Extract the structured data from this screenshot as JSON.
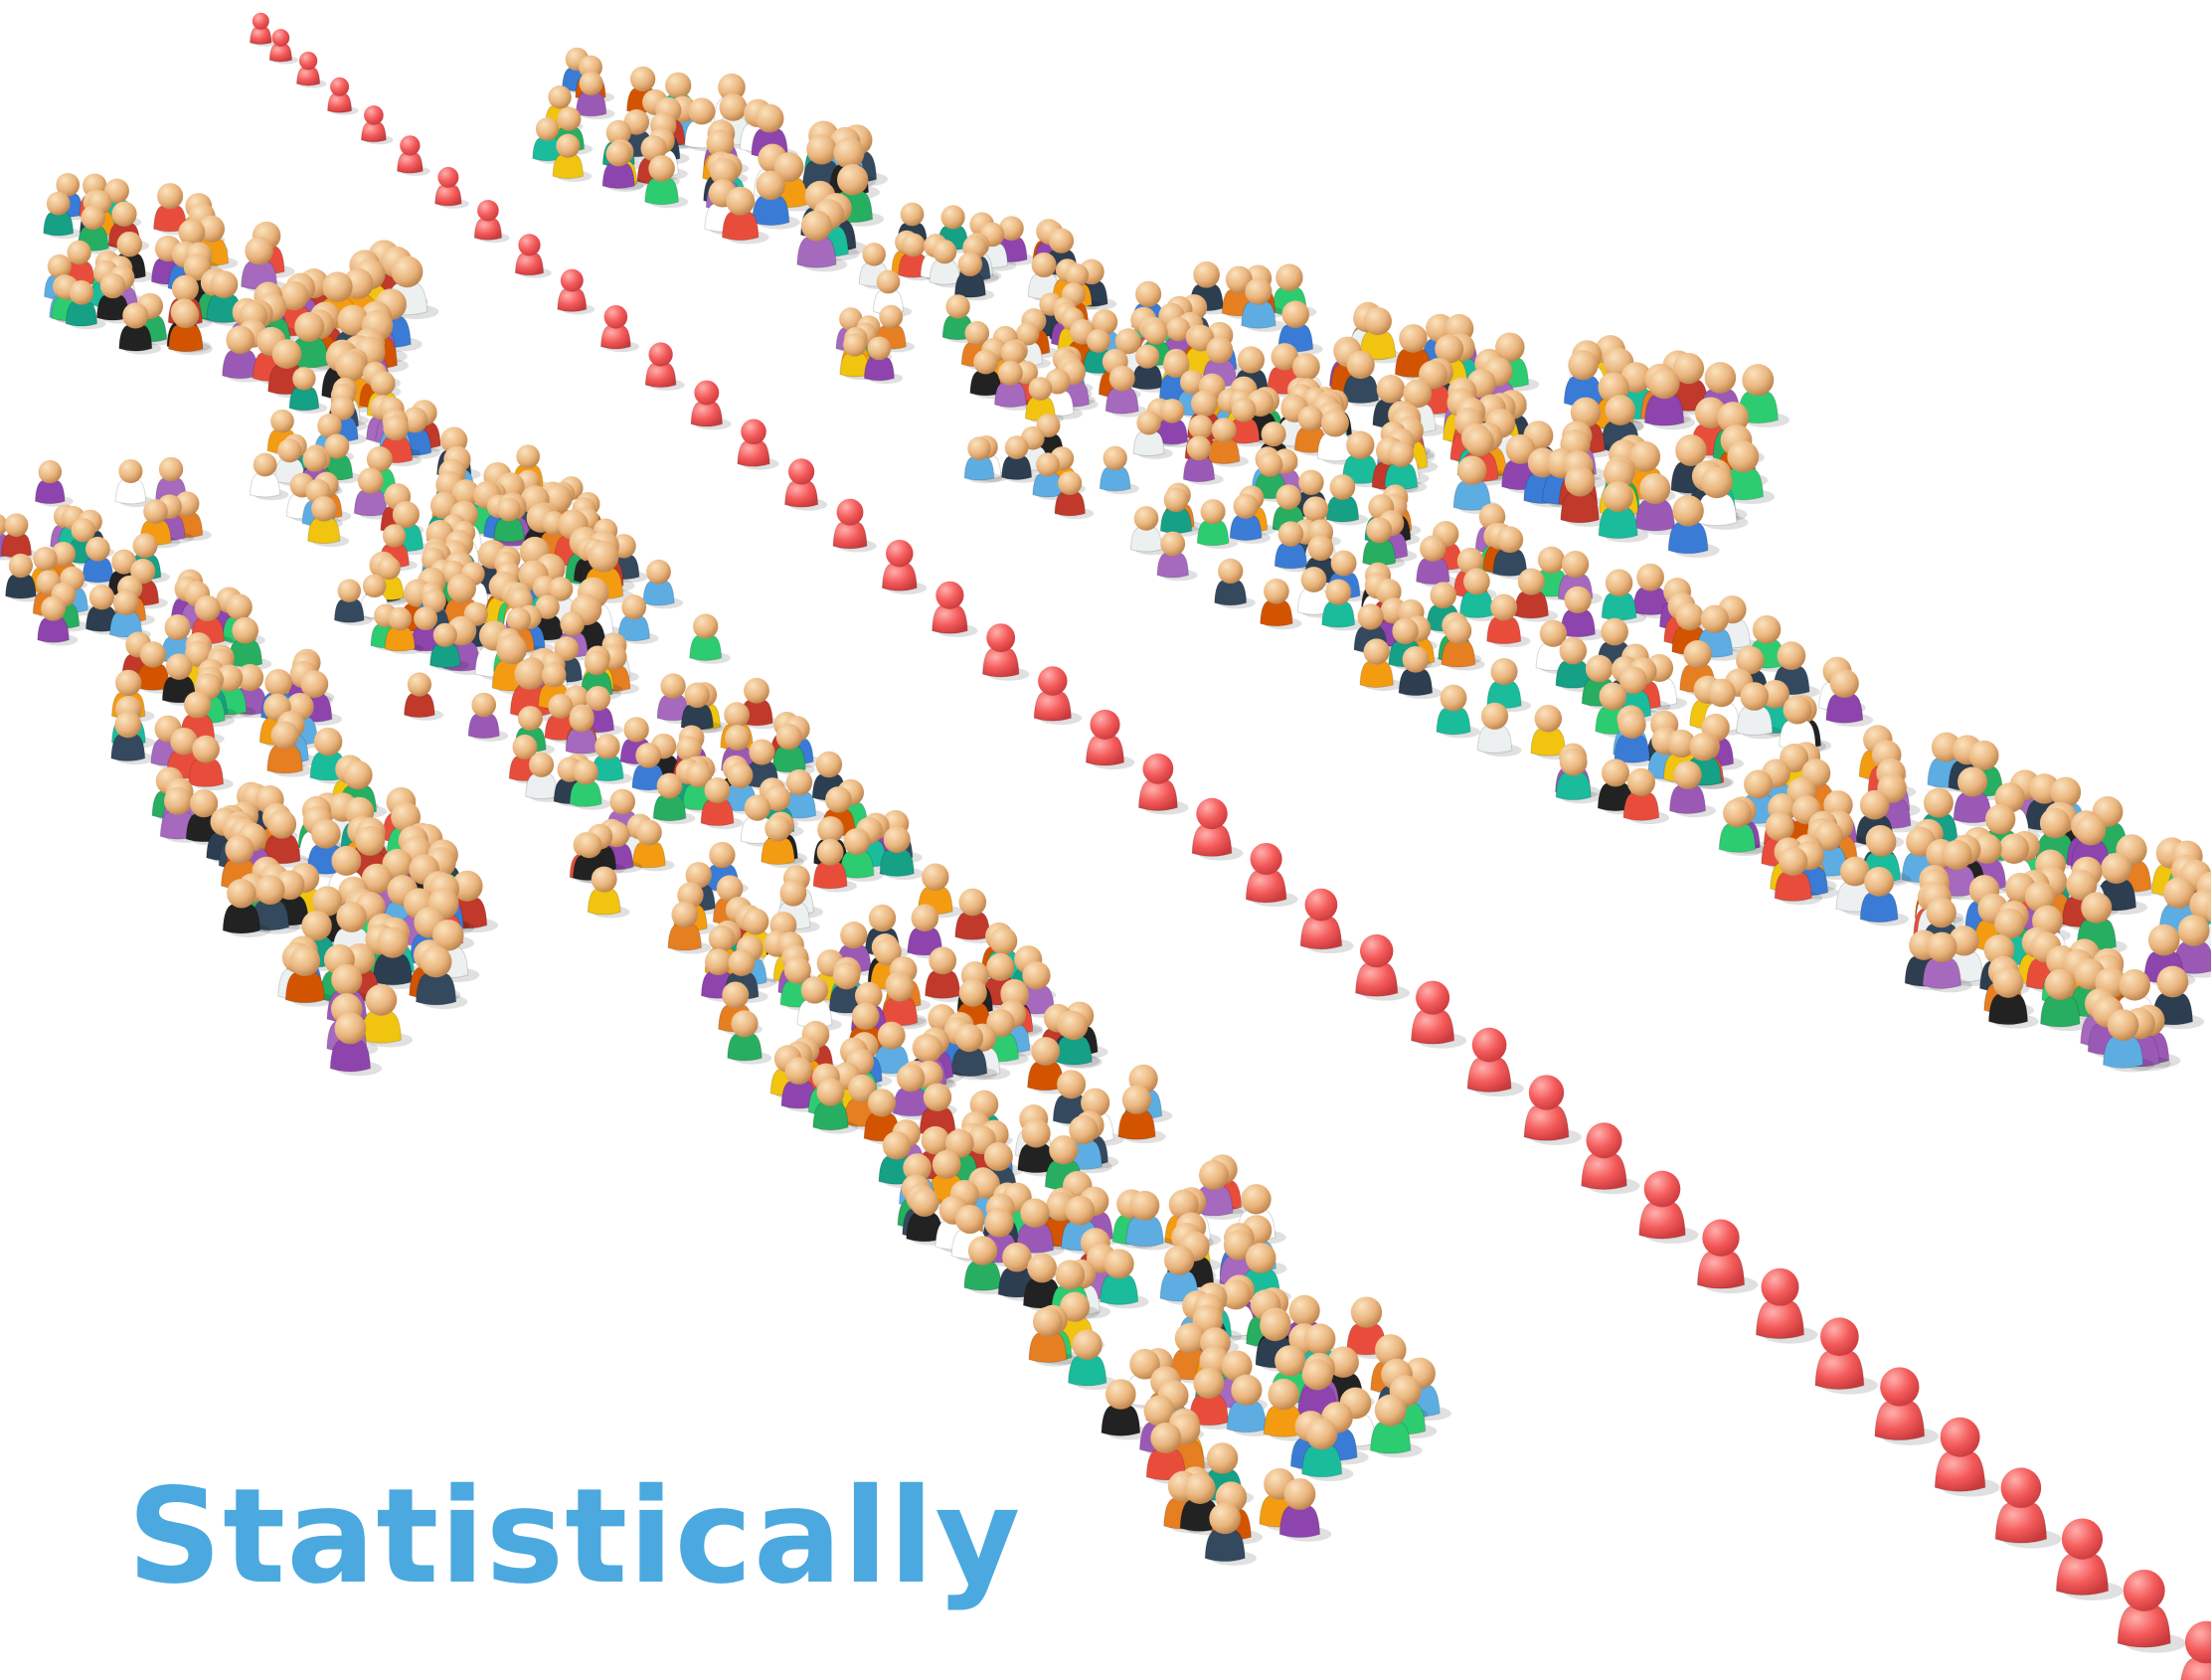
{
  "title": "Statistically"
}
